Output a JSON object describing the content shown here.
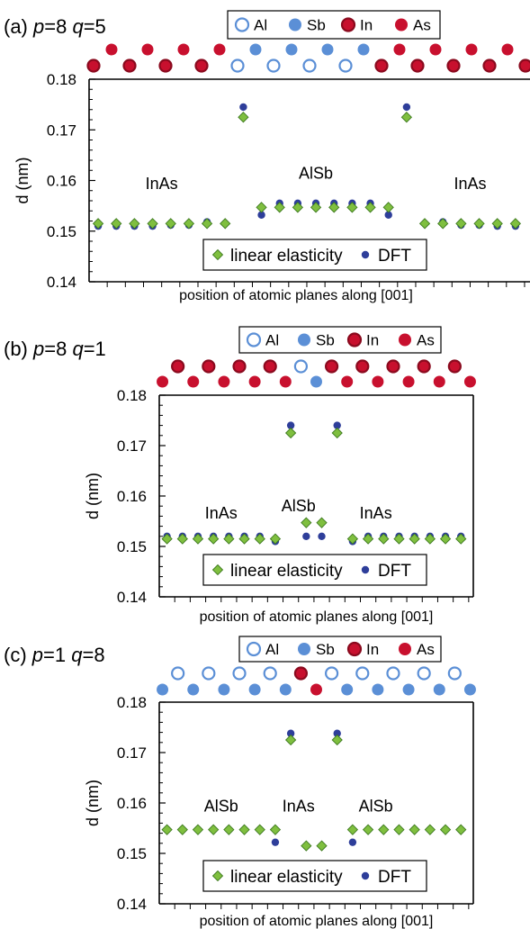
{
  "colors": {
    "Al": "#5b8fd6",
    "Sb": "#5b8fd6",
    "In": "#c8102e",
    "As": "#c8102e",
    "linear": "#7fbf3f",
    "dft": "#2e3e9a"
  },
  "chart_data": [
    {
      "type": "scatter",
      "panel_label": "(a)",
      "p_label": "p",
      "p_value": "=8",
      "q_label": "q",
      "q_value": "=5",
      "legend_atoms": [
        {
          "name": "Al",
          "style": "ring-blue"
        },
        {
          "name": "Sb",
          "style": "solid-blue"
        },
        {
          "name": "In",
          "style": "ring-red"
        },
        {
          "name": "As",
          "style": "solid-red"
        }
      ],
      "atoms": [
        "In",
        "As",
        "In",
        "As",
        "In",
        "As",
        "In",
        "As",
        "Al",
        "Sb",
        "Al",
        "Sb",
        "Al",
        "Sb",
        "Al",
        "Sb",
        "In",
        "As",
        "In",
        "As",
        "In",
        "As",
        "In",
        "As",
        "In"
      ],
      "ylabel": "d (nm)",
      "xlabel": "position of atomic planes along [001]",
      "ylim": [
        0.14,
        0.18
      ],
      "yticks": [
        "0.14",
        "0.15",
        "0.16",
        "0.17",
        "0.18"
      ],
      "regions": [
        {
          "text": "InAs",
          "x": 3.5,
          "y": 0.1583
        },
        {
          "text": "AlSb",
          "x": 12,
          "y": 0.1604
        },
        {
          "text": "InAs",
          "x": 20.5,
          "y": 0.1583
        }
      ],
      "legend_series": [
        "linear elasticity",
        "DFT"
      ],
      "series": [
        {
          "name": "linear elasticity",
          "values": [
            0.1515,
            0.1515,
            0.1515,
            0.1515,
            0.1515,
            0.1515,
            0.1515,
            0.1515,
            0.1725,
            0.1547,
            0.1547,
            0.1547,
            0.1547,
            0.1547,
            0.1547,
            0.1547,
            0.1547,
            0.1725,
            0.1515,
            0.1515,
            0.1515,
            0.1515,
            0.1515,
            0.1515
          ]
        },
        {
          "name": "DFT",
          "values": [
            0.151,
            0.151,
            0.151,
            0.151,
            0.1512,
            0.1512,
            0.1518,
            0.1515,
            0.1745,
            0.1532,
            0.1555,
            0.1555,
            0.1555,
            0.1555,
            0.1555,
            0.1555,
            0.1532,
            0.1745,
            0.1515,
            0.1518,
            0.1512,
            0.1512,
            0.151,
            0.151
          ]
        }
      ]
    },
    {
      "type": "scatter",
      "panel_label": "(b)",
      "p_label": "p",
      "p_value": "=8",
      "q_label": "q",
      "q_value": "=1",
      "legend_atoms": [
        {
          "name": "Al",
          "style": "ring-blue"
        },
        {
          "name": "Sb",
          "style": "solid-blue"
        },
        {
          "name": "In",
          "style": "ring-red"
        },
        {
          "name": "As",
          "style": "solid-red"
        }
      ],
      "atoms": [
        "As",
        "In",
        "As",
        "In",
        "As",
        "In",
        "As",
        "In",
        "As",
        "Al",
        "Sb",
        "In",
        "As",
        "In",
        "As",
        "In",
        "As",
        "In",
        "As",
        "In",
        "As"
      ],
      "ylabel": "d (nm)",
      "xlabel": "position of atomic planes along [001]",
      "ylim": [
        0.14,
        0.18
      ],
      "yticks": [
        "0.14",
        "0.15",
        "0.16",
        "0.17",
        "0.18"
      ],
      "regions": [
        {
          "text": "InAs",
          "x": 3.5,
          "y": 0.1555
        },
        {
          "text": "AlSb",
          "x": 8.5,
          "y": 0.157
        },
        {
          "text": "InAs",
          "x": 13.5,
          "y": 0.1555
        }
      ],
      "legend_series": [
        "linear elasticity",
        "DFT"
      ],
      "series": [
        {
          "name": "linear elasticity",
          "values": [
            0.1515,
            0.1515,
            0.1515,
            0.1515,
            0.1515,
            0.1515,
            0.1515,
            0.1515,
            0.1725,
            0.1547,
            0.1547,
            0.1725,
            0.1515,
            0.1515,
            0.1515,
            0.1515,
            0.1515,
            0.1515,
            0.1515,
            0.1515
          ]
        },
        {
          "name": "DFT",
          "values": [
            0.152,
            0.152,
            0.152,
            0.152,
            0.152,
            0.152,
            0.152,
            0.151,
            0.174,
            0.152,
            0.152,
            0.174,
            0.151,
            0.152,
            0.152,
            0.152,
            0.152,
            0.152,
            0.152,
            0.152
          ]
        }
      ]
    },
    {
      "type": "scatter",
      "panel_label": "(c)",
      "p_label": "p",
      "p_value": "=1",
      "q_label": "q",
      "q_value": "=8",
      "legend_atoms": [
        {
          "name": "Al",
          "style": "ring-blue"
        },
        {
          "name": "Sb",
          "style": "solid-blue"
        },
        {
          "name": "In",
          "style": "ring-red"
        },
        {
          "name": "As",
          "style": "solid-red"
        }
      ],
      "atoms": [
        "Sb",
        "Al",
        "Sb",
        "Al",
        "Sb",
        "Al",
        "Sb",
        "Al",
        "Sb",
        "In",
        "As",
        "Al",
        "Sb",
        "Al",
        "Sb",
        "Al",
        "Sb",
        "Al",
        "Sb",
        "Al",
        "Sb"
      ],
      "ylabel": "d (nm)",
      "xlabel": "position of atomic planes along [001]",
      "ylim": [
        0.14,
        0.18
      ],
      "yticks": [
        "0.14",
        "0.15",
        "0.16",
        "0.17",
        "0.18"
      ],
      "regions": [
        {
          "text": "AlSb",
          "x": 3.5,
          "y": 0.1583
        },
        {
          "text": "InAs",
          "x": 8.5,
          "y": 0.1583
        },
        {
          "text": "AlSb",
          "x": 13.5,
          "y": 0.1583
        }
      ],
      "legend_series": [
        "linear elasticity",
        "DFT"
      ],
      "series": [
        {
          "name": "linear elasticity",
          "values": [
            0.1547,
            0.1547,
            0.1547,
            0.1547,
            0.1547,
            0.1547,
            0.1547,
            0.1547,
            0.1725,
            0.1515,
            0.1515,
            0.1725,
            0.1547,
            0.1547,
            0.1547,
            0.1547,
            0.1547,
            0.1547,
            0.1547,
            0.1547
          ]
        },
        {
          "name": "DFT",
          "values": [
            0.1547,
            0.1547,
            0.1547,
            0.1547,
            0.1547,
            0.1547,
            0.1547,
            0.1522,
            0.1738,
            0.1515,
            0.1515,
            0.1738,
            0.1522,
            0.1547,
            0.1547,
            0.1547,
            0.1547,
            0.1547,
            0.1547,
            0.1547
          ]
        }
      ]
    }
  ]
}
